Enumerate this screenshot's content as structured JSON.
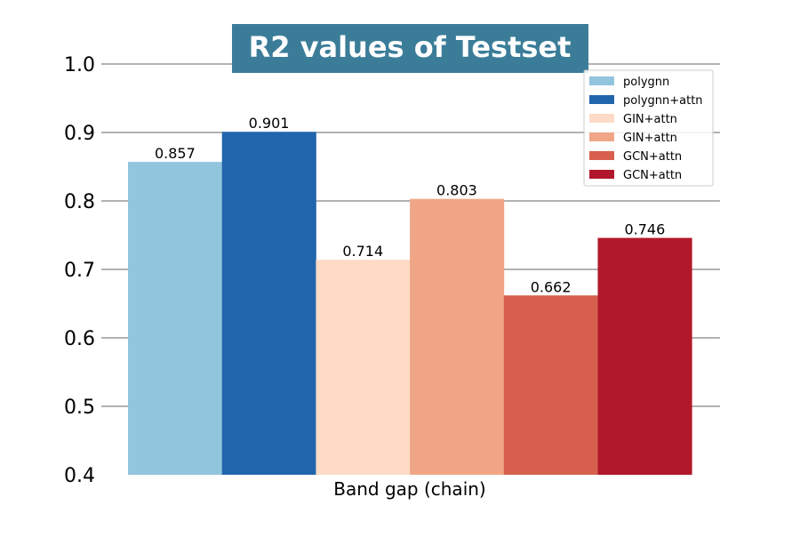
{
  "chart_data": {
    "type": "bar",
    "title": "R2 values of Testset",
    "title_box_color": "#3b7d99",
    "xlabel": "Band gap (chain)",
    "ylabel": "",
    "ylim": [
      0.4,
      1.0
    ],
    "yticks": [
      "0.4",
      "0.5",
      "0.6",
      "0.7",
      "0.8",
      "0.9",
      "1.0"
    ],
    "grid": "horizontal",
    "legend_position": "top-right",
    "categories": [
      "Band gap (chain)"
    ],
    "series": [
      {
        "name": "polygnn",
        "value": 0.857,
        "label": "0.857",
        "color": "#92c5de"
      },
      {
        "name": "polygnn+attn",
        "value": 0.901,
        "label": "0.901",
        "color": "#2166ac"
      },
      {
        "name": "GIN+attn",
        "value": 0.714,
        "label": "0.714",
        "color": "#fddbc7"
      },
      {
        "name": "GIN+attn",
        "value": 0.803,
        "label": "0.803",
        "color": "#f0a686"
      },
      {
        "name": "GCN+attn",
        "value": 0.662,
        "label": "0.662",
        "color": "#d6604d"
      },
      {
        "name": "GCN+attn",
        "value": 0.746,
        "label": "0.746",
        "color": "#b2182b"
      }
    ]
  }
}
